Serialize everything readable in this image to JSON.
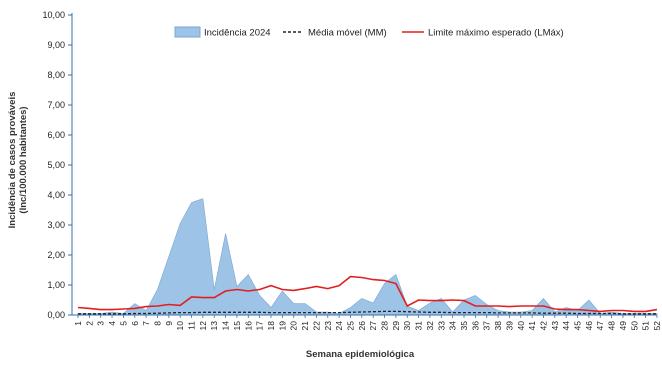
{
  "chart_data": {
    "type": "area",
    "xlabel": "Semana epidemiológica",
    "ylabel_line1": "Incidência de casos prováveis",
    "ylabel_line2": "(Inc/100.000 habitantes)",
    "ylim": [
      0,
      10
    ],
    "yticks": [
      "0,00",
      "1,00",
      "2,00",
      "3,00",
      "4,00",
      "5,00",
      "6,00",
      "7,00",
      "8,00",
      "9,00",
      "10,00"
    ],
    "categories": [
      "1",
      "2",
      "3",
      "4",
      "5",
      "6",
      "7",
      "8",
      "9",
      "10",
      "11",
      "12",
      "13",
      "14",
      "15",
      "16",
      "17",
      "18",
      "19",
      "20",
      "21",
      "22",
      "23",
      "24",
      "25",
      "26",
      "27",
      "28",
      "29",
      "30",
      "31",
      "32",
      "33",
      "34",
      "35",
      "36",
      "37",
      "38",
      "39",
      "40",
      "41",
      "42",
      "43",
      "44",
      "45",
      "46",
      "47",
      "48",
      "49",
      "50",
      "51",
      "52"
    ],
    "legend": {
      "incidencia": "Incidência 2024",
      "mm": "Média móvel (MM)",
      "lmax": "Limite máximo esperado (LMáx)"
    },
    "colors": {
      "incidencia_fill": "#9dc3e6",
      "incidencia_stroke": "#7aa6d2",
      "mm": "#222222",
      "lmax": "#e02020",
      "axis": "#3b6ea8"
    },
    "series": [
      {
        "name": "Incidência 2024",
        "kind": "area",
        "values": [
          0.05,
          0.05,
          0.05,
          0.1,
          0.05,
          0.38,
          0.15,
          0.85,
          1.95,
          3.05,
          3.75,
          3.88,
          0.85,
          2.72,
          0.95,
          1.35,
          0.65,
          0.25,
          0.8,
          0.38,
          0.38,
          0.1,
          0.1,
          0.05,
          0.25,
          0.55,
          0.4,
          1.05,
          1.35,
          0.3,
          0.15,
          0.4,
          0.55,
          0.1,
          0.5,
          0.65,
          0.35,
          0.15,
          0.1,
          0.1,
          0.15,
          0.55,
          0.1,
          0.25,
          0.15,
          0.5,
          0.05,
          0.1,
          0.05,
          0.05,
          0.05,
          0.05
        ]
      },
      {
        "name": "Média móvel (MM)",
        "kind": "dashed",
        "values": [
          0.04,
          0.04,
          0.04,
          0.04,
          0.04,
          0.05,
          0.05,
          0.06,
          0.07,
          0.08,
          0.08,
          0.09,
          0.09,
          0.09,
          0.09,
          0.09,
          0.09,
          0.08,
          0.08,
          0.08,
          0.08,
          0.08,
          0.08,
          0.08,
          0.09,
          0.1,
          0.11,
          0.12,
          0.12,
          0.11,
          0.1,
          0.09,
          0.09,
          0.08,
          0.08,
          0.08,
          0.08,
          0.07,
          0.07,
          0.07,
          0.07,
          0.06,
          0.06,
          0.06,
          0.05,
          0.05,
          0.05,
          0.05,
          0.04,
          0.04,
          0.04,
          0.04
        ]
      },
      {
        "name": "Limite máximo esperado (LMáx)",
        "kind": "line",
        "values": [
          0.25,
          0.22,
          0.18,
          0.18,
          0.2,
          0.22,
          0.28,
          0.3,
          0.35,
          0.32,
          0.6,
          0.58,
          0.58,
          0.8,
          0.85,
          0.8,
          0.85,
          0.98,
          0.85,
          0.82,
          0.88,
          0.95,
          0.88,
          0.98,
          1.28,
          1.25,
          1.18,
          1.15,
          1.05,
          0.3,
          0.5,
          0.48,
          0.48,
          0.5,
          0.48,
          0.3,
          0.3,
          0.3,
          0.28,
          0.3,
          0.3,
          0.3,
          0.2,
          0.18,
          0.18,
          0.15,
          0.12,
          0.15,
          0.15,
          0.12,
          0.12,
          0.18
        ]
      }
    ]
  }
}
